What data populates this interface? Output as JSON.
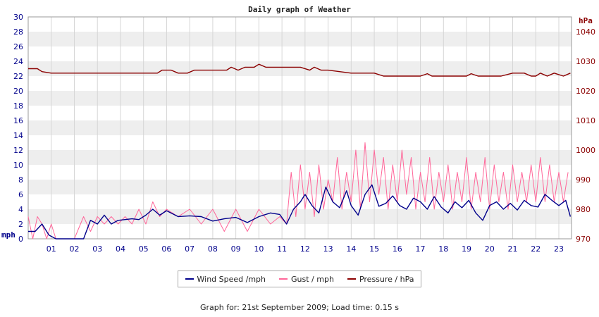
{
  "chart_data": {
    "type": "line",
    "title": "Daily graph of Weather",
    "left_axis": {
      "unit": "mph",
      "range": [
        0,
        30
      ],
      "ticks": [
        "0",
        "2",
        "4",
        "6",
        "8",
        "10",
        "12",
        "14",
        "16",
        "18",
        "20",
        "22",
        "24",
        "26",
        "28",
        "30"
      ]
    },
    "right_axis": {
      "unit": "hPa",
      "range": [
        970,
        1045
      ],
      "ticks": [
        "970",
        "980",
        "990",
        "1000",
        "1010",
        "1020",
        "1030",
        "1040"
      ]
    },
    "x_axis": {
      "range": [
        0,
        23.55
      ],
      "ticks": [
        "01",
        "02",
        "03",
        "04",
        "05",
        "06",
        "07",
        "08",
        "09",
        "10",
        "11",
        "12",
        "13",
        "14",
        "15",
        "16",
        "17",
        "18",
        "19",
        "20",
        "21",
        "22",
        "23"
      ]
    },
    "grid": "horizontal alternating bands, vertical hour lines",
    "series": [
      {
        "name": "Wind Speed /mph",
        "axis": "left",
        "color": "#00008b",
        "x": [
          0,
          0.3,
          0.6,
          0.9,
          1.2,
          1.5,
          2.0,
          2.4,
          2.7,
          3.0,
          3.3,
          3.6,
          3.9,
          4.2,
          4.5,
          4.8,
          5.1,
          5.4,
          5.7,
          6.0,
          6.5,
          7.0,
          7.5,
          8.0,
          8.5,
          9.0,
          9.5,
          10.0,
          10.5,
          10.9,
          11.2,
          11.5,
          11.8,
          12.0,
          12.3,
          12.6,
          12.9,
          13.2,
          13.5,
          13.8,
          14.0,
          14.3,
          14.6,
          14.9,
          15.2,
          15.5,
          15.8,
          16.1,
          16.4,
          16.7,
          17.0,
          17.3,
          17.6,
          17.9,
          18.2,
          18.5,
          18.8,
          19.1,
          19.4,
          19.7,
          20.0,
          20.3,
          20.6,
          20.9,
          21.2,
          21.5,
          21.8,
          22.1,
          22.4,
          22.7,
          23.0,
          23.3,
          23.5
        ],
        "y": [
          1,
          1,
          2,
          0.5,
          0,
          0,
          0,
          0,
          2.5,
          2,
          3.2,
          2,
          2.5,
          2.6,
          2.7,
          2.6,
          3.2,
          4,
          3.2,
          3.8,
          3,
          3.1,
          3,
          2.4,
          2.7,
          2.9,
          2.2,
          3,
          3.5,
          3.3,
          2,
          4,
          5,
          6,
          4.5,
          3.5,
          7,
          5,
          4.2,
          6.5,
          4.5,
          3.2,
          6,
          7.3,
          4.4,
          4.8,
          5.8,
          4.5,
          4,
          5.5,
          5,
          4,
          5.7,
          4.3,
          3.5,
          5,
          4.2,
          5.2,
          3.5,
          2.5,
          4.5,
          5,
          4,
          4.8,
          3.9,
          5.2,
          4.5,
          4.3,
          6,
          5.2,
          4.5,
          5.2,
          3
        ],
        "values_note": ""
      },
      {
        "name": "Gust / mph",
        "axis": "left",
        "color": "#ff6699",
        "x": [
          0,
          0.2,
          0.4,
          0.6,
          0.8,
          1.0,
          1.2,
          2.0,
          2.4,
          2.7,
          3.0,
          3.3,
          3.6,
          3.9,
          4.2,
          4.5,
          4.8,
          5.1,
          5.4,
          5.7,
          6.0,
          6.5,
          7.0,
          7.5,
          8.0,
          8.5,
          9.0,
          9.5,
          10.0,
          10.5,
          10.9,
          11.2,
          11.4,
          11.6,
          11.8,
          12.0,
          12.2,
          12.4,
          12.6,
          12.8,
          13.0,
          13.2,
          13.4,
          13.6,
          13.8,
          14.0,
          14.2,
          14.4,
          14.6,
          14.8,
          15.0,
          15.2,
          15.4,
          15.6,
          15.8,
          16.0,
          16.2,
          16.4,
          16.6,
          16.8,
          17.0,
          17.2,
          17.4,
          17.6,
          17.8,
          18.0,
          18.2,
          18.4,
          18.6,
          18.8,
          19.0,
          19.2,
          19.4,
          19.6,
          19.8,
          20.0,
          20.2,
          20.4,
          20.6,
          20.8,
          21.0,
          21.2,
          21.4,
          21.6,
          21.8,
          22.0,
          22.2,
          22.4,
          22.6,
          22.8,
          23.0,
          23.2,
          23.4
        ],
        "y": [
          3,
          0,
          3,
          2,
          0,
          2,
          0,
          0,
          3,
          1,
          3,
          2,
          3,
          2,
          3,
          2,
          4,
          2,
          5,
          3,
          4,
          3,
          4,
          2,
          4,
          1,
          4,
          1,
          4,
          2,
          3,
          2,
          9,
          3,
          10,
          4,
          9,
          3,
          10,
          4,
          8,
          5,
          11,
          4,
          9,
          5,
          12,
          4,
          13,
          5,
          12,
          6,
          11,
          4,
          10,
          5,
          12,
          6,
          11,
          4,
          9,
          5,
          11,
          4,
          9,
          5,
          10,
          4,
          9,
          5,
          11,
          4,
          9,
          5,
          11,
          4,
          10,
          5,
          9,
          4,
          10,
          5,
          9,
          5,
          10,
          5,
          11,
          5,
          10,
          5,
          9,
          5,
          9
        ],
        "values_note": ""
      },
      {
        "name": "Pressure / hPa",
        "axis": "right",
        "color": "#8b0000",
        "x": [
          0,
          0.4,
          0.6,
          1.0,
          2.0,
          3.0,
          4.0,
          5.0,
          5.6,
          5.8,
          6.2,
          6.5,
          6.9,
          7.2,
          8.0,
          8.6,
          8.8,
          9.1,
          9.4,
          9.8,
          10.0,
          10.3,
          11.0,
          11.8,
          12.2,
          12.4,
          12.7,
          13.0,
          14.0,
          15.0,
          15.4,
          16.0,
          17.0,
          17.3,
          17.5,
          17.8,
          18.5,
          19.0,
          19.2,
          19.5,
          20.0,
          20.5,
          21.0,
          21.3,
          21.5,
          21.8,
          22.0,
          22.2,
          22.5,
          22.8,
          23.2,
          23.5
        ],
        "y": [
          1027.5,
          1027.5,
          1026.5,
          1026,
          1026,
          1026,
          1026,
          1026,
          1026,
          1027,
          1027,
          1026,
          1026,
          1027,
          1027,
          1027,
          1028,
          1027,
          1028,
          1028,
          1029,
          1028,
          1028,
          1028,
          1027,
          1028,
          1027,
          1027,
          1026,
          1026,
          1025,
          1025,
          1025,
          1025.8,
          1025,
          1025,
          1025,
          1025,
          1025.8,
          1025,
          1025,
          1025,
          1026,
          1026,
          1026,
          1025,
          1025,
          1026,
          1025,
          1026,
          1025,
          1026
        ],
        "values_note": ""
      }
    ]
  },
  "legend": {
    "wind": "Wind Speed /mph",
    "gust": "Gust / mph",
    "pressure": "Pressure / hPa"
  },
  "footer": "Graph for: 21st September 2009; Load time: 0.15 s"
}
